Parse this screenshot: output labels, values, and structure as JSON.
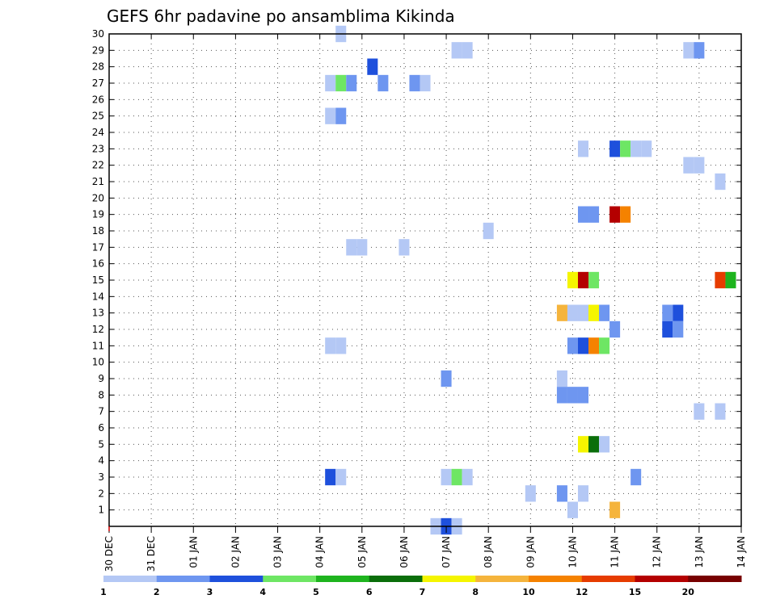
{
  "chart_data": {
    "type": "heatmap",
    "title": "GEFS 6hr padavine po ansamblima Kikinda",
    "x_tick_labels": [
      "30 DEC",
      "31 DEC",
      "01 JAN",
      "02 JAN",
      "03 JAN",
      "04 JAN",
      "05 JAN",
      "06 JAN",
      "07 JAN",
      "08 JAN",
      "09 JAN",
      "10 JAN",
      "11 JAN",
      "12 JAN",
      "13 JAN",
      "14 JAN"
    ],
    "xlim_days": [
      0,
      15
    ],
    "y_tick_labels": [
      "1",
      "2",
      "3",
      "4",
      "5",
      "6",
      "7",
      "8",
      "9",
      "10",
      "11",
      "12",
      "13",
      "14",
      "15",
      "16",
      "17",
      "18",
      "19",
      "20",
      "21",
      "22",
      "23",
      "24",
      "25",
      "26",
      "27",
      "28",
      "29",
      "30"
    ],
    "ylim": [
      0,
      30
    ],
    "grid": true,
    "colorbar": {
      "colors": [
        "#b4c8f5",
        "#6e96f0",
        "#1e50dc",
        "#6ee664",
        "#1eb41e",
        "#0a6e0a",
        "#f5f500",
        "#f5b43c",
        "#f58200",
        "#e63c00",
        "#b40000",
        "#780000"
      ],
      "labels": [
        "1",
        "2",
        "3",
        "4",
        "5",
        "6",
        "7",
        "8",
        "10",
        "12",
        "15",
        "20"
      ]
    },
    "cells": [
      {
        "day": 5.5,
        "member": 30,
        "level": 0
      },
      {
        "day": 8.25,
        "member": 29,
        "level": 0
      },
      {
        "day": 8.5,
        "member": 29,
        "level": 0
      },
      {
        "day": 13.75,
        "member": 29,
        "level": 0
      },
      {
        "day": 14,
        "member": 29,
        "level": 1
      },
      {
        "day": 6.25,
        "member": 28,
        "level": 2
      },
      {
        "day": 5.25,
        "member": 27,
        "level": 0
      },
      {
        "day": 5.5,
        "member": 27,
        "level": 3
      },
      {
        "day": 5.75,
        "member": 27,
        "level": 1
      },
      {
        "day": 6.5,
        "member": 27,
        "level": 1
      },
      {
        "day": 7.25,
        "member": 27,
        "level": 1
      },
      {
        "day": 7.5,
        "member": 27,
        "level": 0
      },
      {
        "day": 5.25,
        "member": 25,
        "level": 0
      },
      {
        "day": 5.5,
        "member": 25,
        "level": 1
      },
      {
        "day": 11.25,
        "member": 23,
        "level": 0
      },
      {
        "day": 12,
        "member": 23,
        "level": 2
      },
      {
        "day": 12.25,
        "member": 23,
        "level": 3
      },
      {
        "day": 12.5,
        "member": 23,
        "level": 0
      },
      {
        "day": 12.75,
        "member": 23,
        "level": 0
      },
      {
        "day": 13.75,
        "member": 22,
        "level": 0
      },
      {
        "day": 14,
        "member": 22,
        "level": 0
      },
      {
        "day": 14.5,
        "member": 21,
        "level": 0
      },
      {
        "day": 11.25,
        "member": 19,
        "level": 1
      },
      {
        "day": 11.5,
        "member": 19,
        "level": 1
      },
      {
        "day": 12,
        "member": 19,
        "level": 10
      },
      {
        "day": 12.25,
        "member": 19,
        "level": 8
      },
      {
        "day": 9,
        "member": 18,
        "level": 0
      },
      {
        "day": 5.75,
        "member": 17,
        "level": 0
      },
      {
        "day": 6,
        "member": 17,
        "level": 0
      },
      {
        "day": 7,
        "member": 17,
        "level": 0
      },
      {
        "day": 11,
        "member": 15,
        "level": 6
      },
      {
        "day": 11.25,
        "member": 15,
        "level": 10
      },
      {
        "day": 11.5,
        "member": 15,
        "level": 3
      },
      {
        "day": 14.5,
        "member": 15,
        "level": 9
      },
      {
        "day": 14.75,
        "member": 15,
        "level": 4
      },
      {
        "day": 10.75,
        "member": 13,
        "level": 7
      },
      {
        "day": 11,
        "member": 13,
        "level": 0
      },
      {
        "day": 11.25,
        "member": 13,
        "level": 0
      },
      {
        "day": 11.5,
        "member": 13,
        "level": 6
      },
      {
        "day": 11.75,
        "member": 13,
        "level": 1
      },
      {
        "day": 13.25,
        "member": 13,
        "level": 1
      },
      {
        "day": 13.5,
        "member": 13,
        "level": 2
      },
      {
        "day": 12,
        "member": 12,
        "level": 1
      },
      {
        "day": 13.25,
        "member": 12,
        "level": 2
      },
      {
        "day": 13.5,
        "member": 12,
        "level": 1
      },
      {
        "day": 5.25,
        "member": 11,
        "level": 0
      },
      {
        "day": 5.5,
        "member": 11,
        "level": 0
      },
      {
        "day": 11,
        "member": 11,
        "level": 1
      },
      {
        "day": 11.25,
        "member": 11,
        "level": 2
      },
      {
        "day": 11.5,
        "member": 11,
        "level": 8
      },
      {
        "day": 11.75,
        "member": 11,
        "level": 3
      },
      {
        "day": 8,
        "member": 9,
        "level": 1
      },
      {
        "day": 10.75,
        "member": 9,
        "level": 0
      },
      {
        "day": 10.75,
        "member": 8,
        "level": 1
      },
      {
        "day": 11,
        "member": 8,
        "level": 1
      },
      {
        "day": 11.25,
        "member": 8,
        "level": 1
      },
      {
        "day": 14,
        "member": 7,
        "level": 0
      },
      {
        "day": 14.5,
        "member": 7,
        "level": 0
      },
      {
        "day": 11.25,
        "member": 5,
        "level": 6
      },
      {
        "day": 11.5,
        "member": 5,
        "level": 5
      },
      {
        "day": 11.75,
        "member": 5,
        "level": 0
      },
      {
        "day": 5.25,
        "member": 3,
        "level": 2
      },
      {
        "day": 5.5,
        "member": 3,
        "level": 0
      },
      {
        "day": 8,
        "member": 3,
        "level": 0
      },
      {
        "day": 8.25,
        "member": 3,
        "level": 3
      },
      {
        "day": 8.5,
        "member": 3,
        "level": 0
      },
      {
        "day": 12.5,
        "member": 3,
        "level": 1
      },
      {
        "day": 10,
        "member": 2,
        "level": 0
      },
      {
        "day": 10.75,
        "member": 2,
        "level": 1
      },
      {
        "day": 11.25,
        "member": 2,
        "level": 0
      },
      {
        "day": 11,
        "member": 1,
        "level": 0
      },
      {
        "day": 12,
        "member": 1,
        "level": 7
      },
      {
        "day": 7.75,
        "member": 0,
        "level": 0
      },
      {
        "day": 8,
        "member": 0,
        "level": 2
      },
      {
        "day": 8.25,
        "member": 0,
        "level": 0
      }
    ]
  }
}
